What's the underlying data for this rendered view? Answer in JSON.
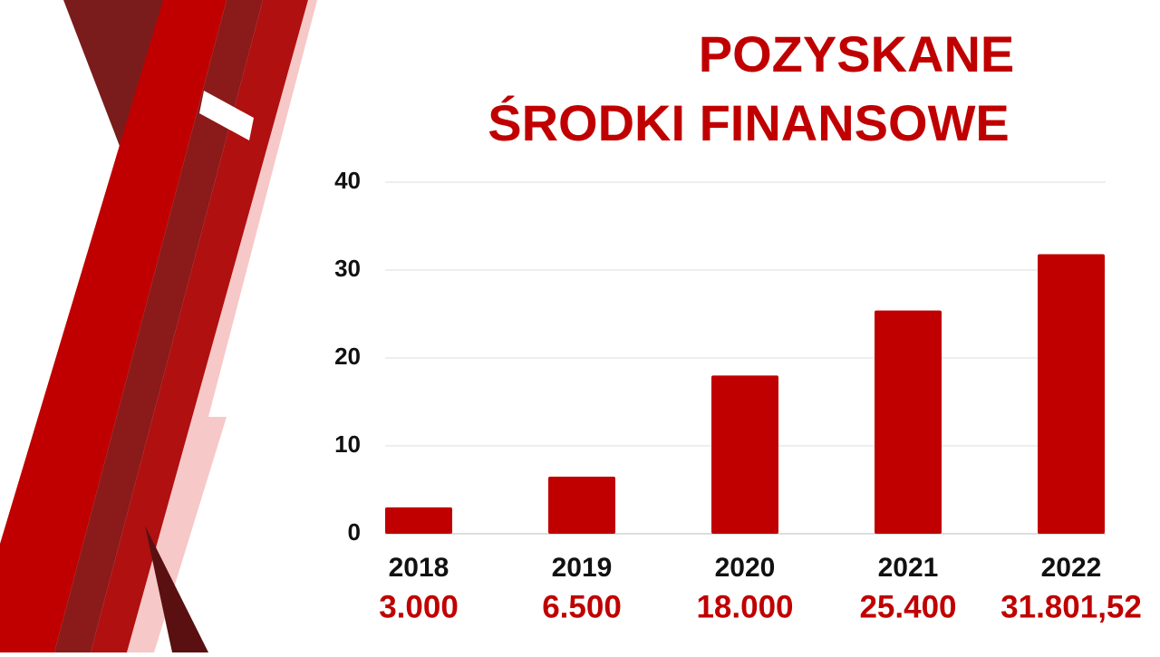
{
  "chart_data": {
    "type": "bar",
    "title": [
      "POZYSKANE",
      "ŚRODKI FINANSOWE"
    ],
    "categories": [
      "2018",
      "2019",
      "2020",
      "2021",
      "2022"
    ],
    "values": [
      3,
      6.5,
      18,
      25.4,
      31.80152
    ],
    "value_labels": [
      "3.000",
      "6.500",
      "18.000",
      "25.400",
      "31.801,52"
    ],
    "color": "#c00000",
    "ylim": [
      0,
      40
    ],
    "yticks": [
      0,
      10,
      20,
      30,
      40
    ],
    "grid": true
  }
}
